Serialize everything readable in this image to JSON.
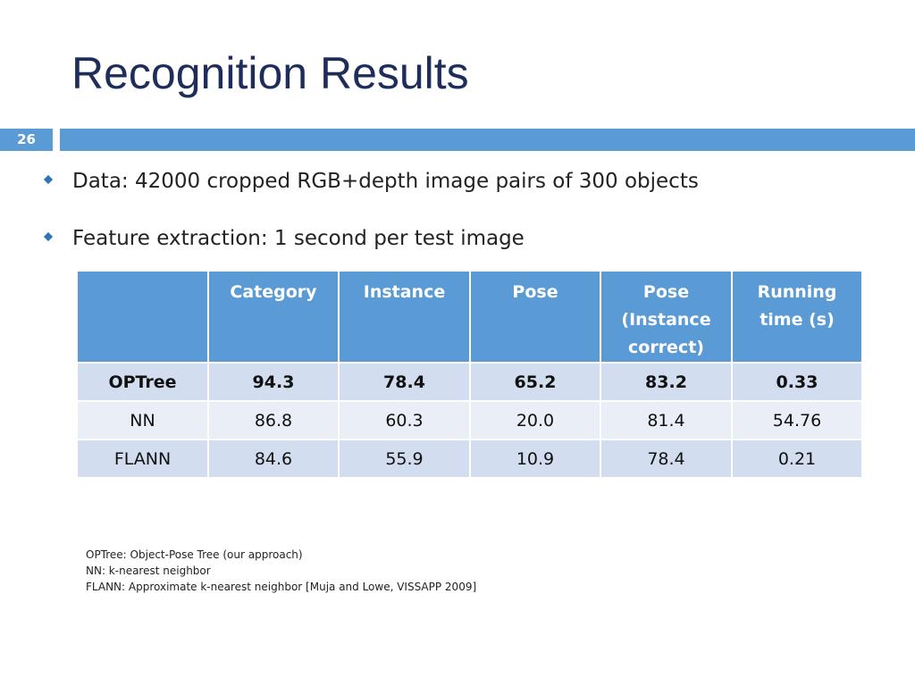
{
  "slide": {
    "title": "Recognition Results",
    "page_number": "26"
  },
  "bullets": [
    "Data: 42000 cropped RGB+depth image pairs of 300 objects",
    "Feature extraction: 1 second per test image"
  ],
  "colors": {
    "title": "#1f2d5a",
    "accent_bar": "#5b9bd5",
    "bullet_marker": "#2e75b6",
    "table_header": "#5b9bd5",
    "row_band_dark": "#d2deef",
    "row_band_light": "#eaeff7"
  },
  "table": {
    "headers": [
      "",
      "Category",
      "Instance",
      "Pose",
      "Pose (Instance correct)",
      "Running time (s)"
    ],
    "rows": [
      {
        "method": "OPTree",
        "category": "94.3",
        "instance": "78.4",
        "pose": "65.2",
        "pose_instance_correct": "83.2",
        "running_time": "0.33",
        "bold": true
      },
      {
        "method": "NN",
        "category": "86.8",
        "instance": "60.3",
        "pose": "20.0",
        "pose_instance_correct": "81.4",
        "running_time": "54.76",
        "bold": false
      },
      {
        "method": "FLANN",
        "category": "84.6",
        "instance": "55.9",
        "pose": "10.9",
        "pose_instance_correct": "78.4",
        "running_time": "0.21",
        "bold": false
      }
    ]
  },
  "footnotes": [
    "OPTree: Object-Pose Tree (our approach)",
    "NN: k-nearest neighbor",
    "FLANN: Approximate k-nearest neighbor [Muja and Lowe, VISSAPP 2009]"
  ]
}
